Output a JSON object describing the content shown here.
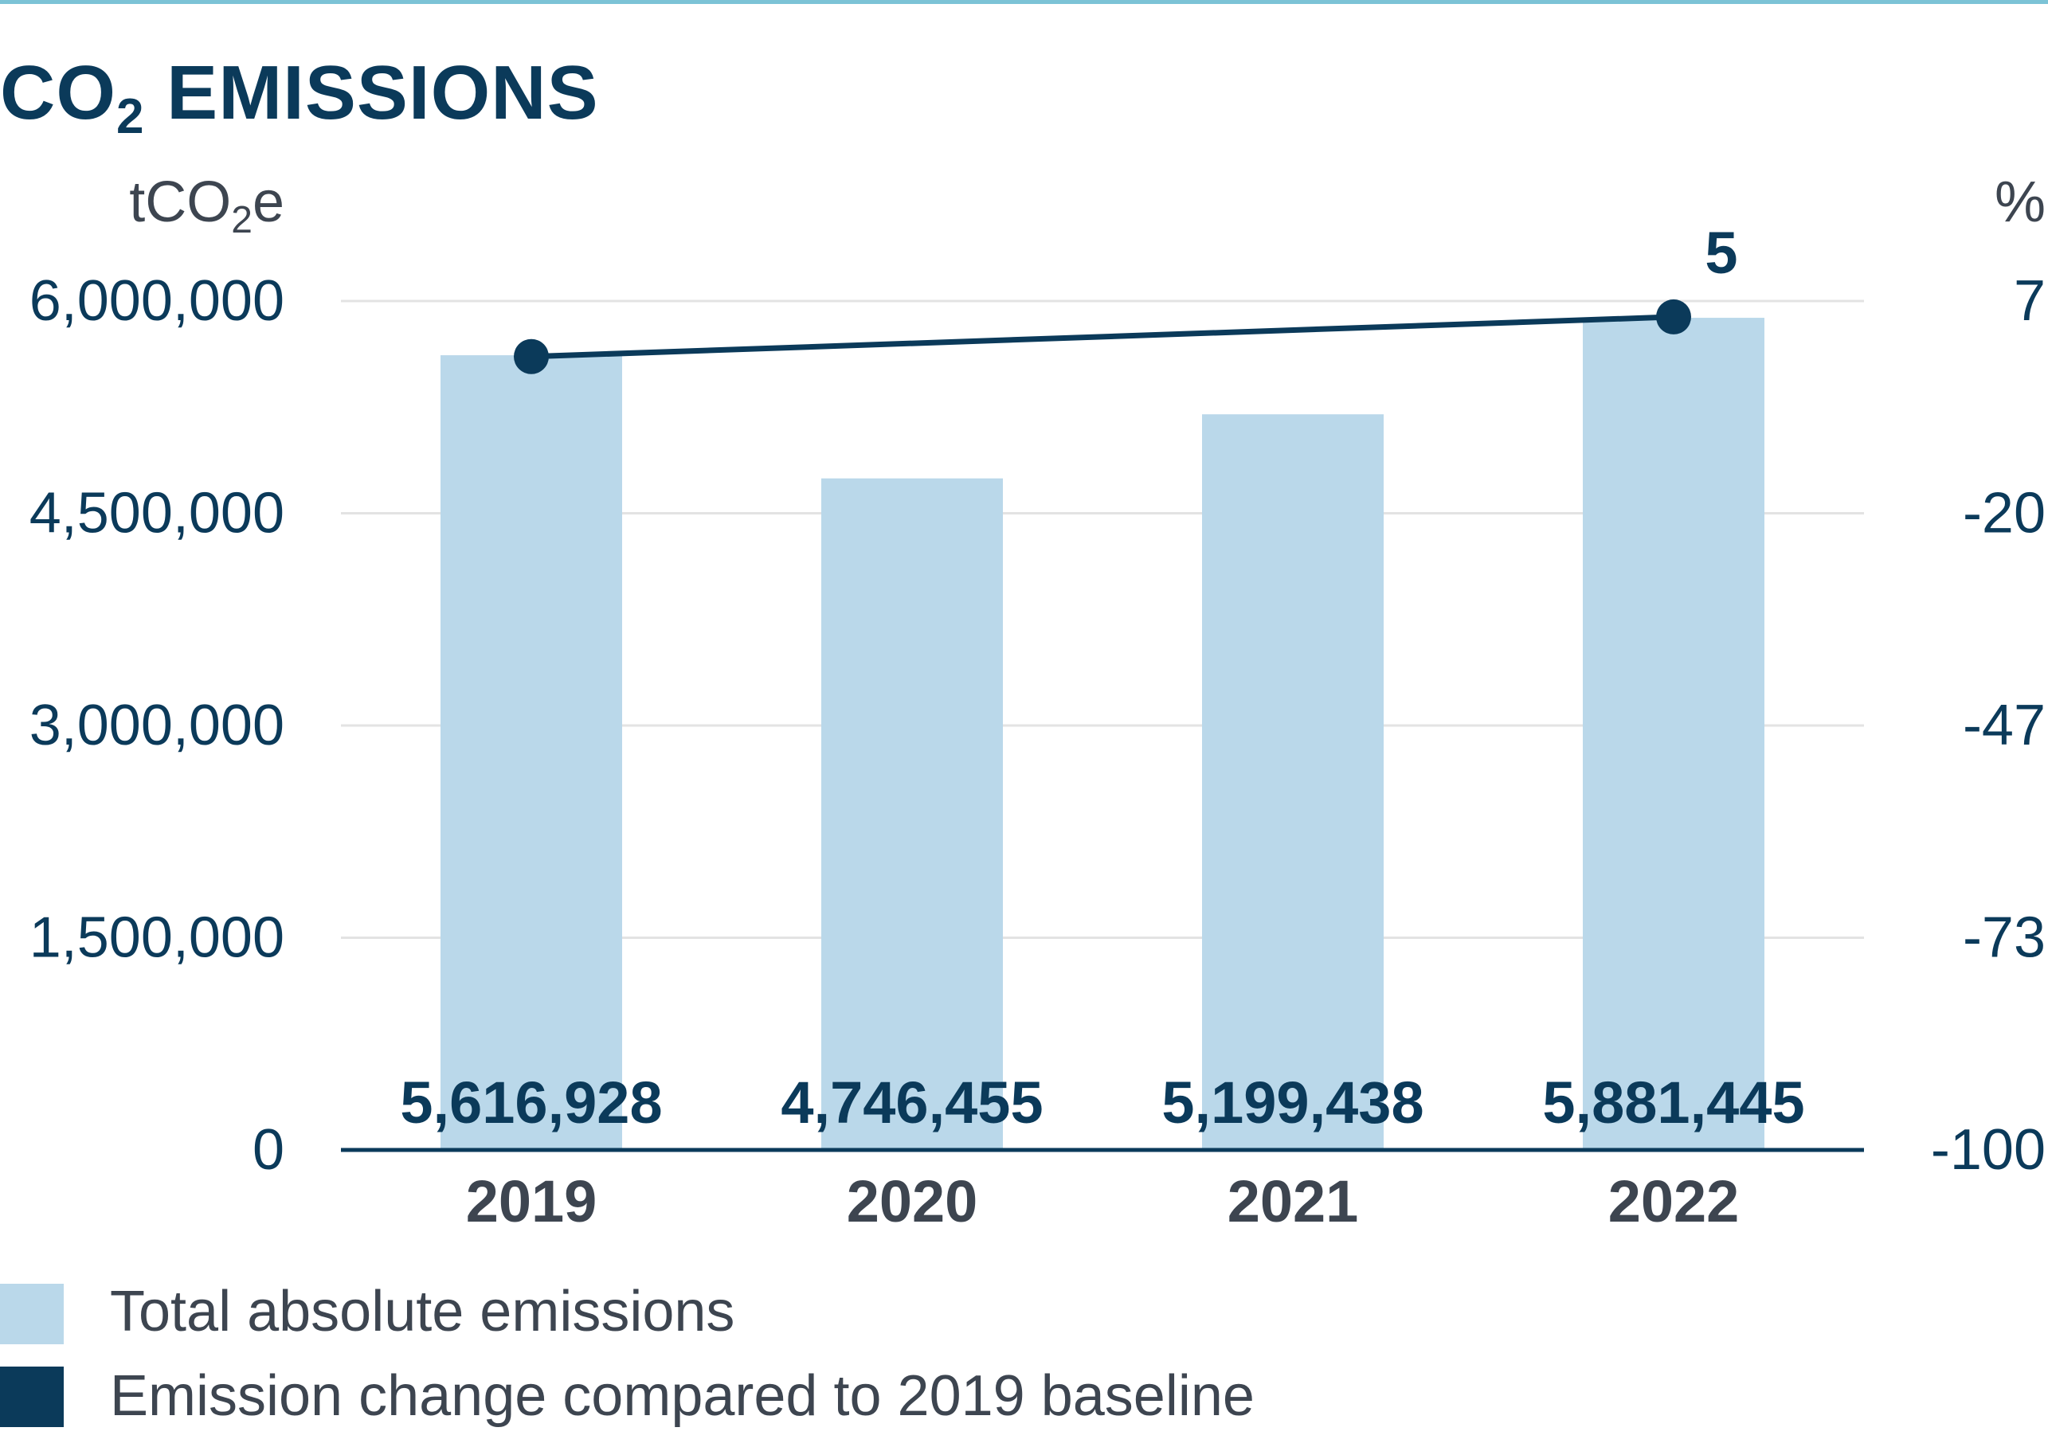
{
  "header": {
    "title_main": "CO",
    "title_sub": "2",
    "title_rest": " EMISSIONS"
  },
  "colors": {
    "accent_rule": "#7cc3d6",
    "bar": "#bad8ea",
    "line": "#0b3a5a",
    "text": "#0b3a5a",
    "muted_text": "#3d4550",
    "grid": "#e3e3e3"
  },
  "chart_data": {
    "type": "bar",
    "categories": [
      "2019",
      "2020",
      "2021",
      "2022"
    ],
    "y_left": {
      "unit_label": "tCO2e",
      "ticks": [
        0,
        1500000,
        3000000,
        4500000,
        6000000
      ],
      "tick_labels": [
        "0",
        "1,500,000",
        "3,000,000",
        "4,500,000",
        "6,000,000"
      ],
      "ylim": [
        0,
        6000000
      ]
    },
    "y_right": {
      "unit_label": "%",
      "tick_labels": [
        "-100",
        "-73",
        "-47",
        "-20",
        "7"
      ],
      "ylim": [
        -100,
        7
      ]
    },
    "series": [
      {
        "name": "Total absolute emissions",
        "type": "bar",
        "axis": "left",
        "values": [
          5616928,
          4746455,
          5199438,
          5881445
        ],
        "value_labels": [
          "5,616,928",
          "4,746,455",
          "5,199,438",
          "5,881,445"
        ]
      },
      {
        "name": "Emission change compared to 2019 baseline",
        "type": "line",
        "axis": "right",
        "x": [
          "2019",
          "2022"
        ],
        "values": [
          0,
          5
        ],
        "value_labels": [
          "",
          "5"
        ]
      }
    ],
    "grid": true,
    "legend_position": "bottom-left"
  },
  "legend": {
    "items": [
      {
        "label": "Total absolute emissions",
        "color": "#bad8ea"
      },
      {
        "label": "Emission change compared to 2019 baseline",
        "color": "#0b3a5a"
      }
    ]
  }
}
